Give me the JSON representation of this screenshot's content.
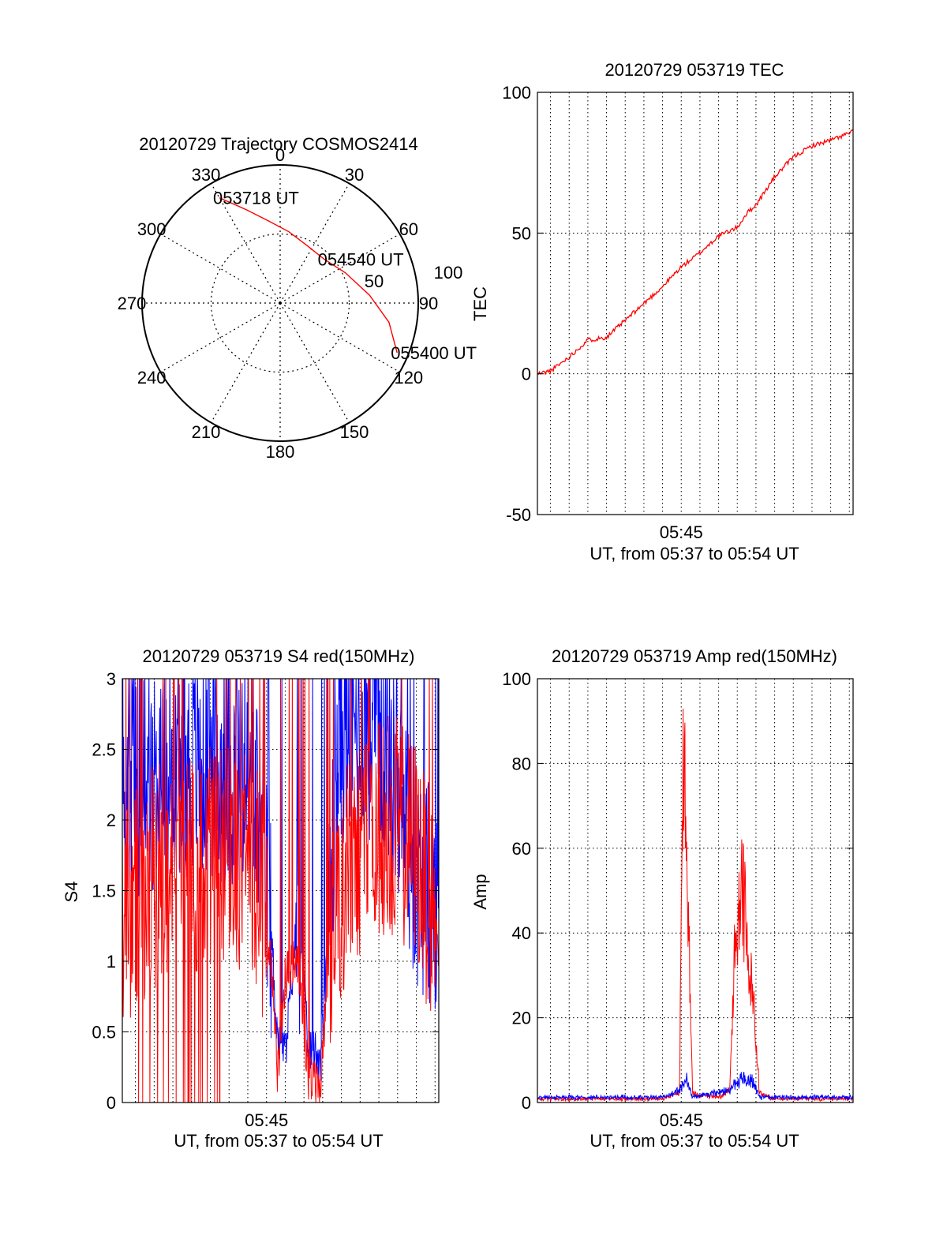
{
  "colors": {
    "red": "#ff0000",
    "blue": "#0000ff",
    "axis": "#000000",
    "grid": "#000000"
  },
  "chart_data": [
    {
      "type": "polar",
      "title": "20120729 Trajectory COSMOS2414",
      "angle_labels": [
        "0",
        "30",
        "60",
        "90",
        "120",
        "150",
        "180",
        "210",
        "240",
        "270",
        "300",
        "330"
      ],
      "radial_labels": [
        "50",
        "100"
      ],
      "radial_range": [
        0,
        100
      ],
      "grid": true,
      "series": [
        {
          "points": [
            {
              "azimuth": 330,
              "zenith": 88
            },
            {
              "azimuth": 340,
              "zenith": 72
            },
            {
              "azimuth": 352,
              "zenith": 60
            },
            {
              "azimuth": 7,
              "zenith": 52
            },
            {
              "azimuth": 25,
              "zenith": 46
            },
            {
              "azimuth": 45,
              "zenith": 45
            },
            {
              "azimuth": 65,
              "zenith": 52
            },
            {
              "azimuth": 85,
              "zenith": 65
            },
            {
              "azimuth": 100,
              "zenith": 80
            },
            {
              "azimuth": 113,
              "zenith": 92
            }
          ]
        }
      ],
      "annotations": [
        {
          "text": "053718 UT",
          "azimuth": 330,
          "zenith": 88
        },
        {
          "text": "054540 UT",
          "azimuth": 45,
          "zenith": 45
        },
        {
          "text": "055400 UT",
          "azimuth": 113,
          "zenith": 92
        }
      ]
    },
    {
      "type": "line",
      "title": "20120729 053719 TEC",
      "ylabel": "TEC",
      "xlabel": "UT, from 05:37 to 05:54 UT",
      "x_tick_labels": [
        {
          "minute": 45,
          "label": "05:45"
        }
      ],
      "xlim": [
        37.3,
        54.2
      ],
      "ylim": [
        -50,
        100
      ],
      "yticks": [
        -50,
        0,
        50,
        100
      ],
      "grid": true,
      "series": [
        {
          "x": [
            37.3,
            38.0,
            39.0,
            40.0,
            41.0,
            42.0,
            43.0,
            44.0,
            45.0,
            46.0,
            47.0,
            48.0,
            48.5,
            49.0,
            50.0,
            51.0,
            52.0,
            53.0,
            54.2
          ],
          "y": [
            0,
            1,
            6,
            12,
            13,
            19,
            25,
            31,
            38,
            43,
            49,
            52,
            57,
            60,
            70,
            77,
            81,
            83,
            86
          ]
        }
      ]
    },
    {
      "type": "line",
      "title": "20120729 053719 S4 red(150MHz)",
      "ylabel": "S4",
      "xlabel": "UT, from 05:37 to 05:54 UT",
      "x_tick_labels": [
        {
          "minute": 45,
          "label": "05:45"
        }
      ],
      "xlim": [
        37.3,
        54.2
      ],
      "ylim": [
        0,
        3
      ],
      "yticks": [
        0,
        0.5,
        1,
        1.5,
        2,
        2.5,
        3
      ],
      "grid": true,
      "series": [
        {
          "color": "blue",
          "x": [
            37.3,
            39.0,
            41.0,
            43.0,
            44.5,
            45.2,
            45.6,
            46.0,
            46.7,
            47.2,
            47.9,
            48.4,
            48.9,
            50.0,
            51.5,
            53.0,
            54.2
          ],
          "y": [
            2.2,
            2.3,
            2.4,
            2.3,
            2.1,
            1.3,
            0.45,
            0.35,
            1.4,
            0.4,
            0.32,
            1.5,
            2.6,
            2.7,
            2.5,
            1.6,
            1.4
          ]
        },
        {
          "color": "red",
          "x": [
            37.3,
            39.0,
            41.0,
            43.0,
            44.5,
            45.2,
            45.6,
            46.0,
            46.7,
            47.2,
            47.9,
            48.4,
            48.9,
            50.0,
            51.5,
            53.0,
            54.2
          ],
          "y": [
            1.3,
            1.6,
            1.7,
            1.8,
            1.6,
            1.1,
            0.2,
            0.9,
            1.0,
            0.2,
            0.12,
            1.2,
            1.5,
            1.8,
            2.0,
            1.8,
            1.1
          ]
        }
      ]
    },
    {
      "type": "line",
      "title": "20120729 053719 Amp red(150MHz)",
      "ylabel": "Amp",
      "xlabel": "UT, from 05:37 to 05:54 UT",
      "x_tick_labels": [
        {
          "minute": 45,
          "label": "05:45"
        }
      ],
      "xlim": [
        37.3,
        54.2
      ],
      "ylim": [
        0,
        100
      ],
      "yticks": [
        0,
        20,
        40,
        60,
        80,
        100
      ],
      "grid": true,
      "series": [
        {
          "color": "red",
          "x": [
            37.3,
            44.0,
            44.9,
            45.1,
            45.3,
            45.6,
            46.0,
            47.0,
            47.6,
            47.9,
            48.3,
            48.8,
            49.2,
            50.0,
            54.2
          ],
          "y": [
            0.5,
            0.5,
            2,
            92,
            70,
            2,
            1.5,
            1,
            3,
            45,
            58,
            30,
            2,
            0.5,
            0.5
          ]
        },
        {
          "color": "blue",
          "x": [
            37.3,
            44.0,
            44.9,
            45.3,
            45.6,
            47.6,
            48.3,
            48.8,
            49.2,
            54.2
          ],
          "y": [
            1,
            1,
            3,
            6,
            1,
            3,
            7,
            6,
            1,
            1
          ]
        }
      ]
    }
  ]
}
